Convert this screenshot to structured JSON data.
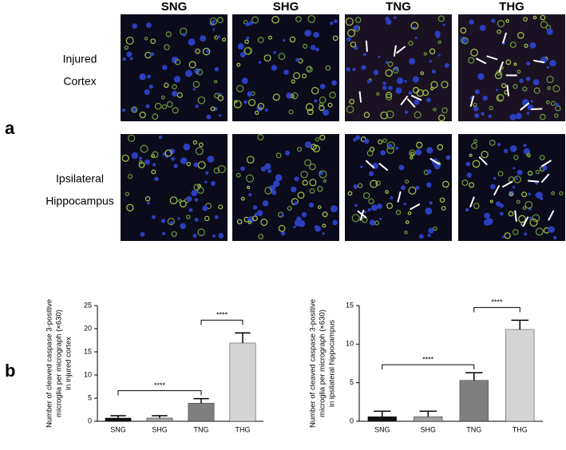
{
  "panel_labels": [
    "a",
    "b"
  ],
  "image_grid": {
    "columns": [
      "SNG",
      "SHG",
      "TNG",
      "THG"
    ],
    "rows": [
      [
        "Injured",
        "Cortex"
      ],
      [
        "Ipsilateral",
        "Hippocampus"
      ]
    ]
  },
  "chart_data": [
    {
      "type": "bar",
      "ylabel": [
        "Number of cleaved caspase 3-positive",
        "microglia per micrograph (×630)",
        "in injured cortex"
      ],
      "categories": [
        "SNG",
        "SHG",
        "TNG",
        "THG"
      ],
      "values": [
        0.7,
        0.7,
        3.9,
        16.9
      ],
      "errors": [
        0.5,
        0.5,
        1.0,
        2.2
      ],
      "colors": [
        "#111111",
        "#a3a3a3",
        "#7f7f7f",
        "#d4d4d4"
      ],
      "ylim": [
        0,
        25
      ],
      "yticks": [
        0,
        5,
        10,
        15,
        20,
        25
      ],
      "annotations": [
        {
          "text": "****",
          "between": [
            "SNG",
            "TNG"
          ]
        },
        {
          "text": "****",
          "between": [
            "TNG",
            "THG"
          ]
        }
      ]
    },
    {
      "type": "bar",
      "ylabel": [
        "Number of cleaved caspase 3-positive",
        "microglia per micrograph (×630)",
        "in ipsilateral hippocampus"
      ],
      "categories": [
        "SNG",
        "SHG",
        "TNG",
        "THG"
      ],
      "values": [
        0.6,
        0.6,
        5.3,
        11.9
      ],
      "errors": [
        0.7,
        0.7,
        1.0,
        1.2
      ],
      "colors": [
        "#111111",
        "#a3a3a3",
        "#7f7f7f",
        "#d4d4d4"
      ],
      "ylim": [
        0,
        15
      ],
      "yticks": [
        0,
        5,
        10,
        15
      ],
      "annotations": [
        {
          "text": "****",
          "between": [
            "SNG",
            "TNG"
          ]
        },
        {
          "text": "****",
          "between": [
            "TNG",
            "THG"
          ]
        }
      ]
    }
  ]
}
